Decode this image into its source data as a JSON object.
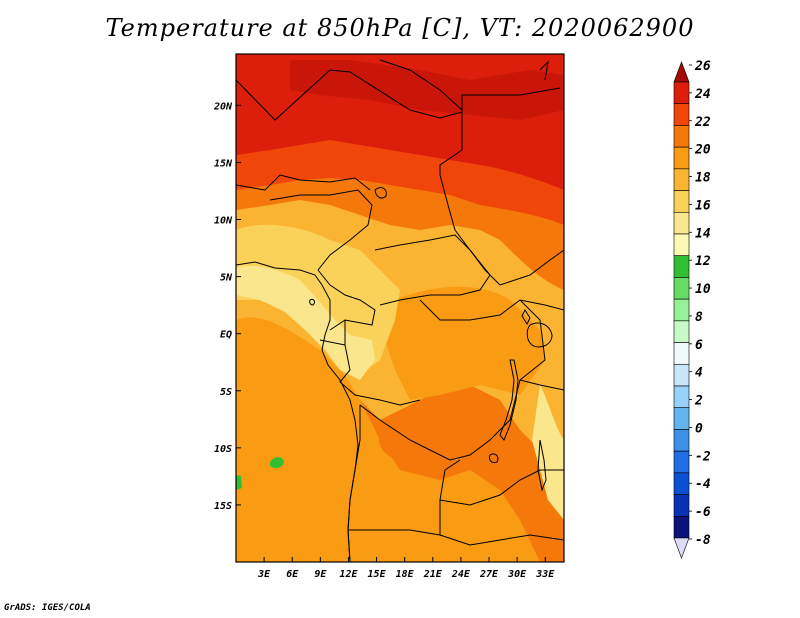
{
  "title": "Temperature at 850hPa [C], VT: 2020062900",
  "credit": "GrADS: IGES/COLA",
  "map": {
    "lon_range": [
      0,
      35
    ],
    "lat_range": [
      -20,
      24.5
    ],
    "x_ticks": [
      "3E",
      "6E",
      "9E",
      "12E",
      "15E",
      "18E",
      "21E",
      "24E",
      "27E",
      "30E",
      "33E"
    ],
    "x_tick_values": [
      3,
      6,
      9,
      12,
      15,
      18,
      21,
      24,
      27,
      30,
      33
    ],
    "y_ticks": [
      "20N",
      "15N",
      "10N",
      "5N",
      "EQ",
      "5S",
      "10S",
      "15S"
    ],
    "y_tick_values": [
      20,
      15,
      10,
      5,
      0,
      -5,
      -10,
      -15
    ]
  },
  "colorbar": {
    "labels": [
      "26",
      "24",
      "22",
      "20",
      "18",
      "16",
      "14",
      "12",
      "10",
      "8",
      "6",
      "4",
      "2",
      "0",
      "-2",
      "-4",
      "-6",
      "-8"
    ],
    "colors": [
      "#a50a05",
      "#dc1e0a",
      "#f0460a",
      "#f5780a",
      "#fa9b14",
      "#fab432",
      "#fad25a",
      "#fae68c",
      "#fafab4",
      "#32be32",
      "#64dc64",
      "#96f096",
      "#c8fac8",
      "#f0fafa",
      "#c8e6fa",
      "#96d2fa",
      "#64b4f0",
      "#3c91e6",
      "#1e6ee6",
      "#0a50d2",
      "#0a32b4",
      "#0a1478",
      "#dcdcf5"
    ]
  }
}
